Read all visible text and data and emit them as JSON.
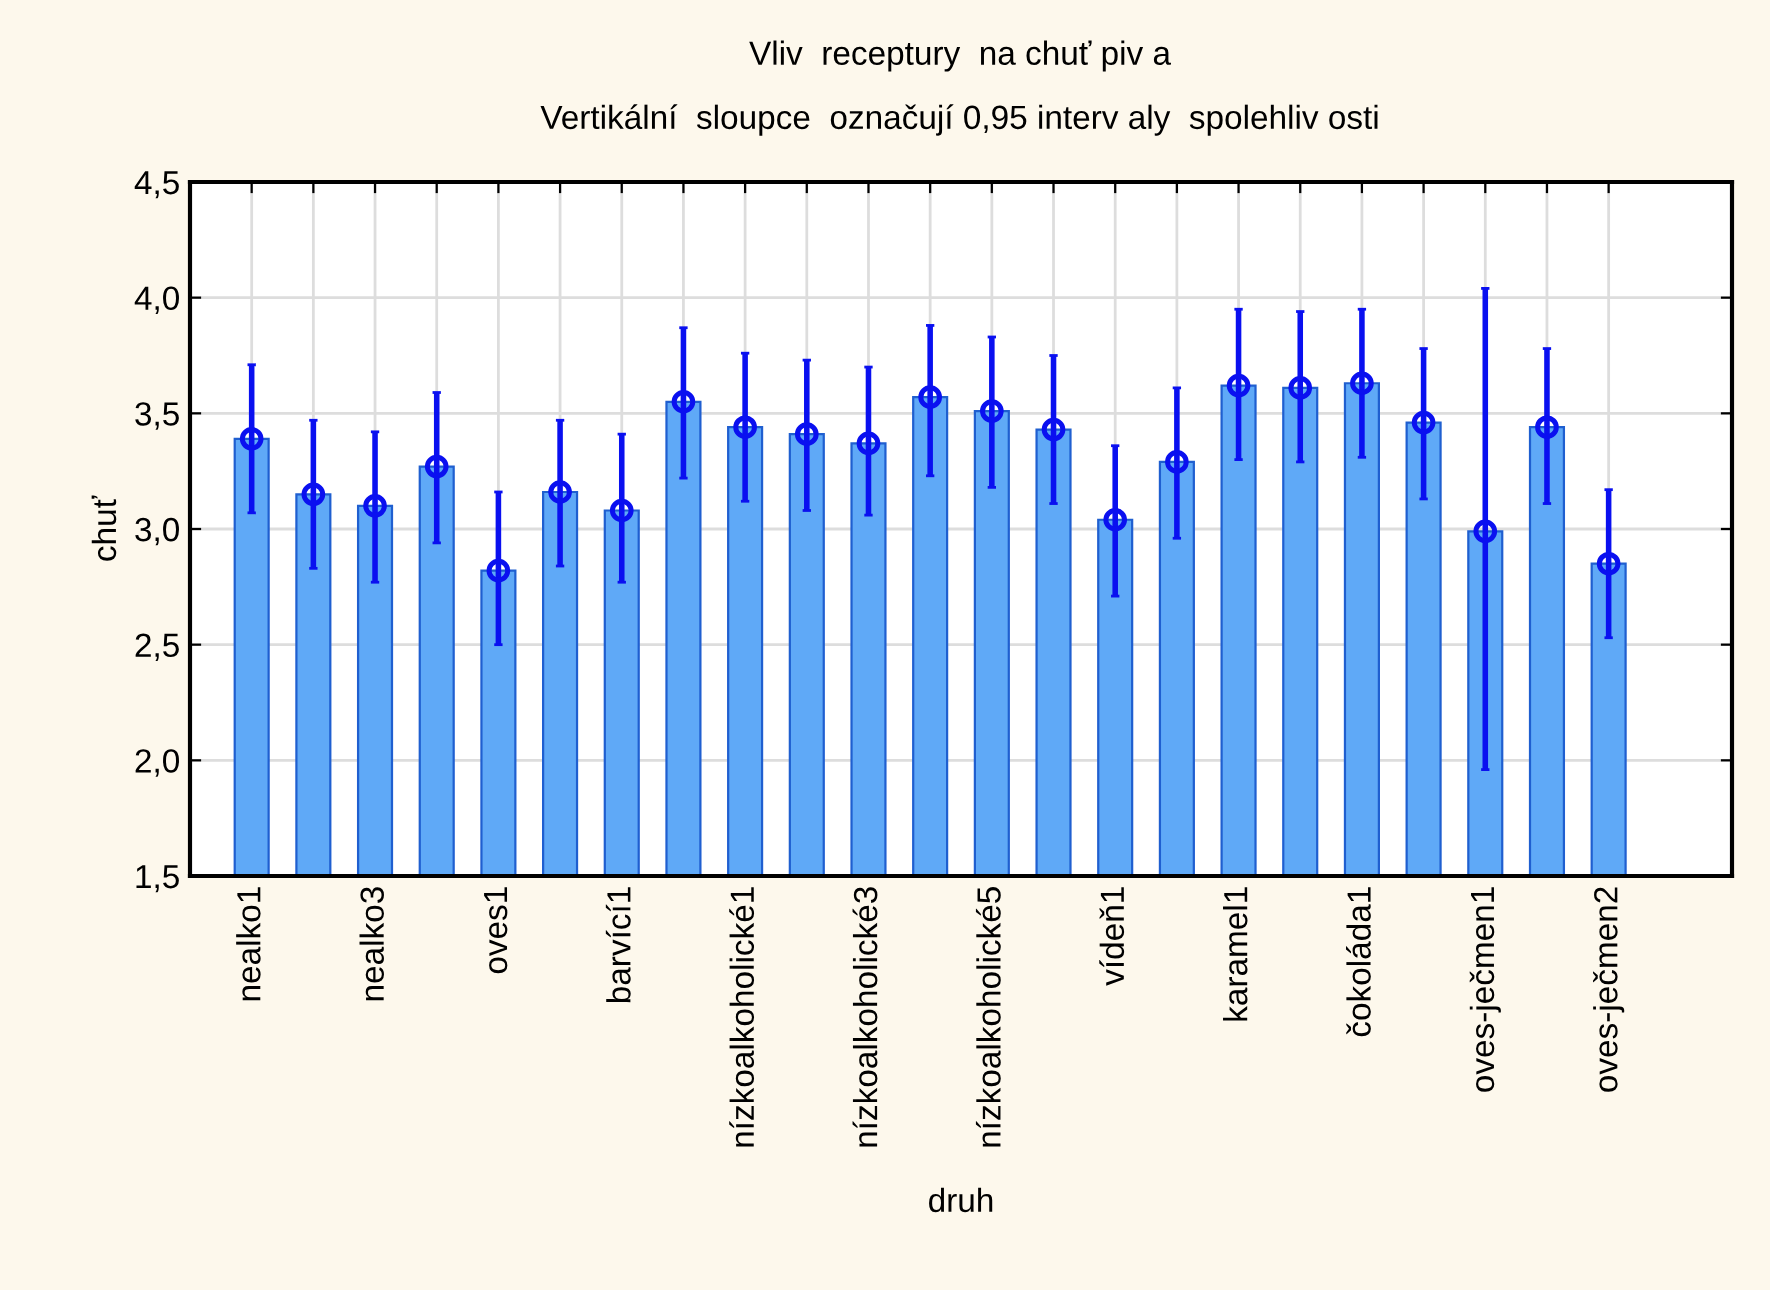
{
  "chart_data": {
    "type": "bar",
    "title": "Vliv  receptury  na chuť piv a",
    "subtitle": "Vertikální  sloupce  označují 0,95 interv aly  spolehliv osti",
    "xlabel": "druh",
    "ylabel": "chuť",
    "categories": [
      "nealko1",
      null,
      "nealko3",
      null,
      "oves1",
      null,
      "barvící1",
      null,
      "nízkoalkoholické1",
      null,
      "nízkoalkoholické3",
      null,
      "nízkoalkoholické5",
      null,
      "vídeň1",
      null,
      "karamel1",
      null,
      "čokoláda1",
      null,
      "oves-ječmen1",
      null,
      "oves-ječmen2"
    ],
    "series": [
      {
        "color": "#5fa9f7",
        "values": [
          3.39,
          3.15,
          3.1,
          3.27,
          2.82,
          3.16,
          3.08,
          3.55,
          3.44,
          3.41,
          3.37,
          3.57,
          3.51,
          3.43,
          3.04,
          3.29,
          3.62,
          3.61,
          3.63,
          3.46,
          2.99,
          3.44,
          2.85
        ]
      },
      {
        "type": "scatter",
        "color": "#0a10f0",
        "values": [
          3.39,
          3.15,
          3.1,
          3.27,
          2.82,
          3.16,
          3.08,
          3.55,
          3.44,
          3.41,
          3.37,
          3.57,
          3.51,
          3.43,
          3.04,
          3.29,
          3.62,
          3.61,
          3.63,
          3.46,
          2.99,
          3.44,
          2.85
        ],
        "errors": [
          [
            3.07,
            3.71
          ],
          [
            2.83,
            3.47
          ],
          [
            2.77,
            3.42
          ],
          [
            2.94,
            3.59
          ],
          [
            2.5,
            3.16
          ],
          [
            2.84,
            3.47
          ],
          [
            2.77,
            3.41
          ],
          [
            3.22,
            3.87
          ],
          [
            3.12,
            3.76
          ],
          [
            3.08,
            3.73
          ],
          [
            3.06,
            3.7
          ],
          [
            3.23,
            3.88
          ],
          [
            3.18,
            3.83
          ],
          [
            3.11,
            3.75
          ],
          [
            2.71,
            3.36
          ],
          [
            2.96,
            3.61
          ],
          [
            3.3,
            3.95
          ],
          [
            3.29,
            3.94
          ],
          [
            3.31,
            3.95
          ],
          [
            3.13,
            3.78
          ],
          [
            1.96,
            4.04
          ],
          [
            3.11,
            3.78
          ],
          [
            2.53,
            3.17
          ]
        ]
      }
    ],
    "ylim": [
      1.5,
      4.5
    ],
    "yticks": [
      {
        "value": 1.5,
        "label": "1,5"
      },
      {
        "value": 2.0,
        "label": "2,0"
      },
      {
        "value": 2.5,
        "label": "2,5"
      },
      {
        "value": 3.0,
        "label": "3,0"
      },
      {
        "value": 3.5,
        "label": "3,5"
      },
      {
        "value": 4.0,
        "label": "4,0"
      },
      {
        "value": 4.5,
        "label": "4,5"
      }
    ],
    "grid": true,
    "marker": "circle",
    "legend": false
  }
}
